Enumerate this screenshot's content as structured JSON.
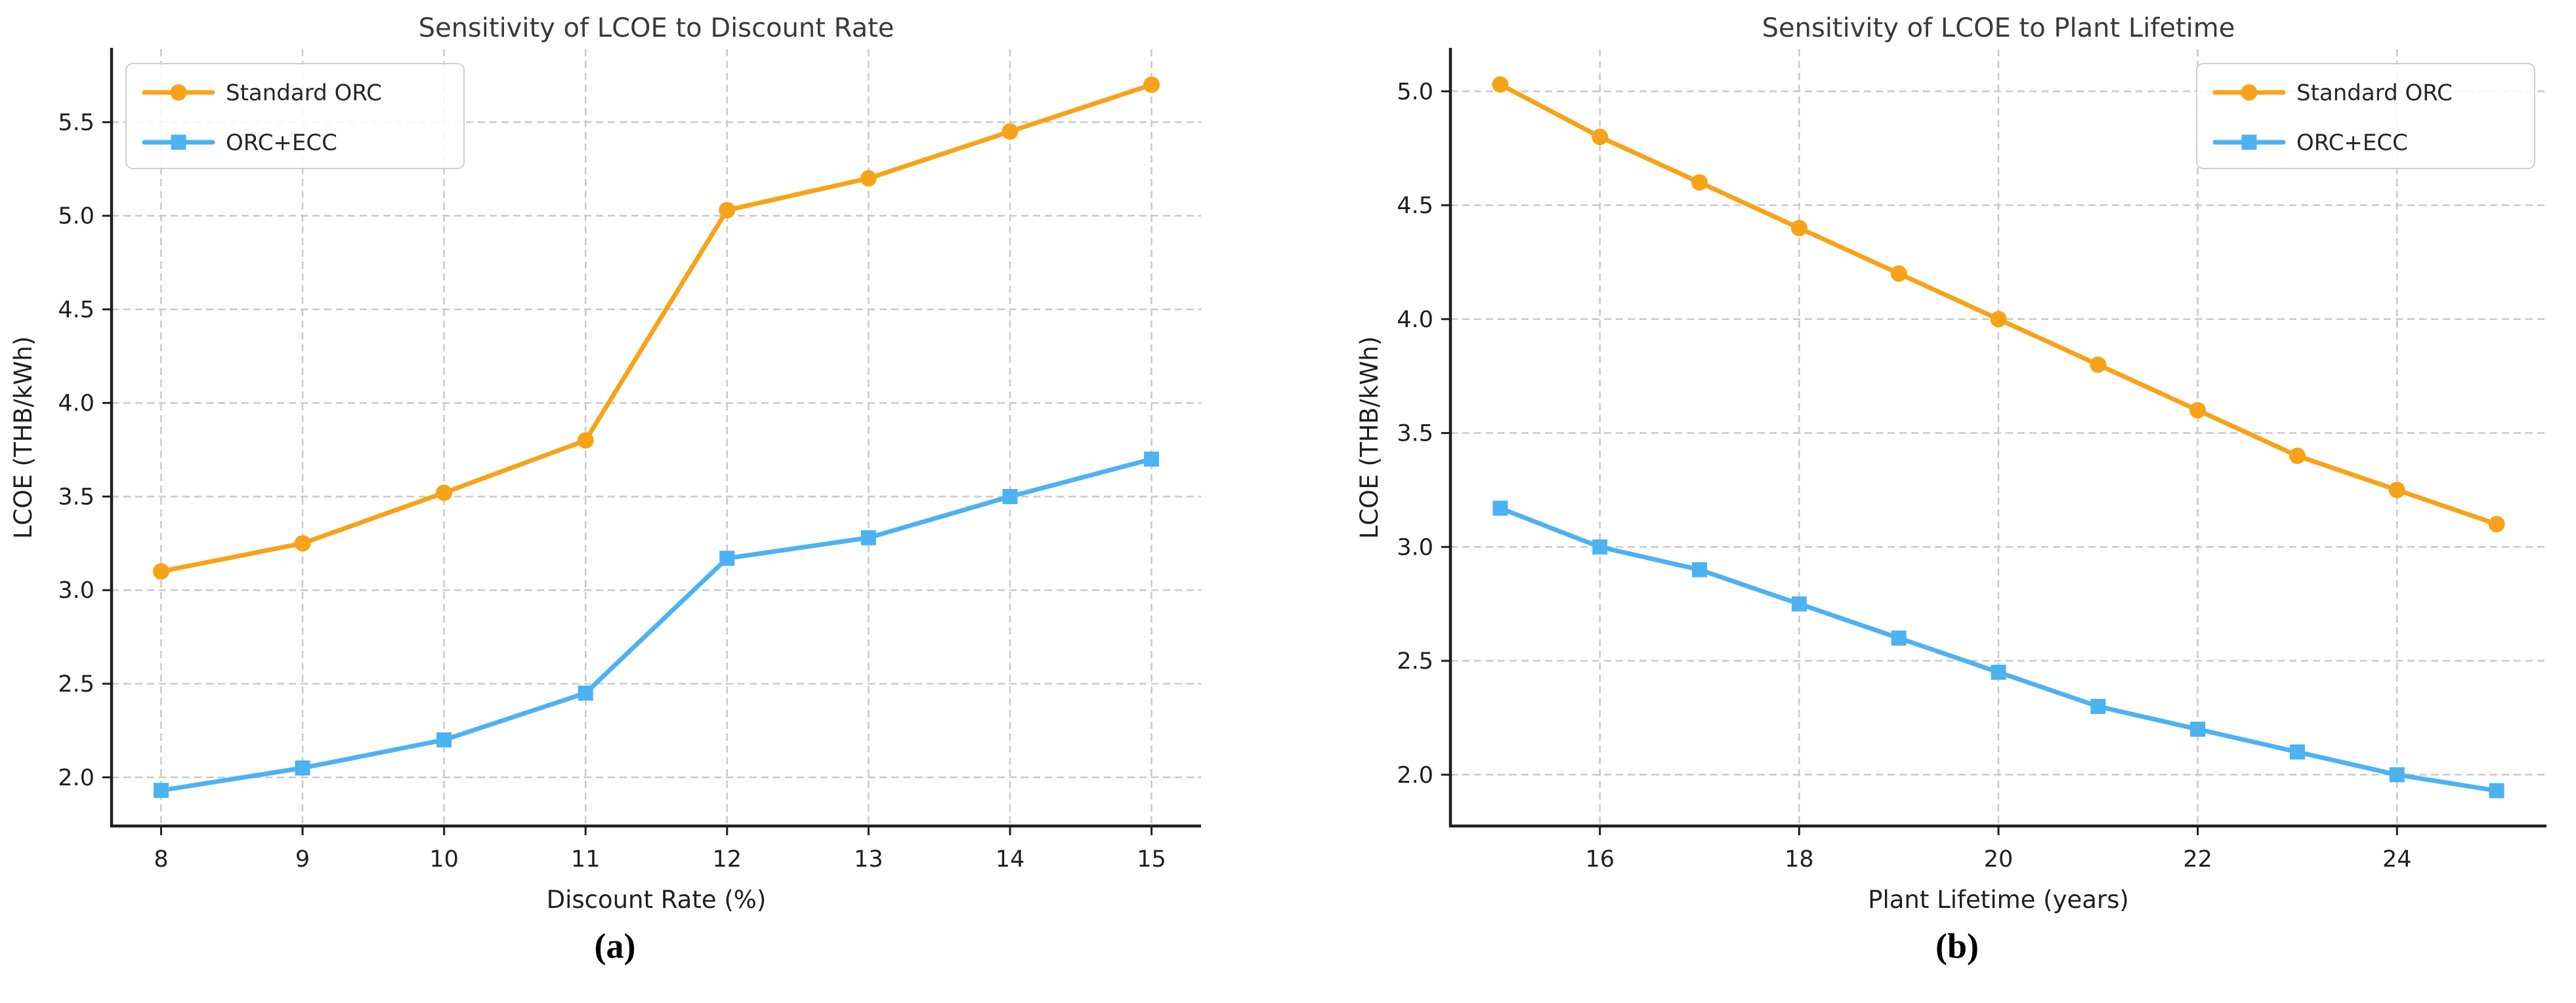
{
  "figure": {
    "background": "#ffffff"
  },
  "colors": {
    "standard_orc": "#F7A319",
    "orc_ecc": "#4DB2F1",
    "grid": "#c9c9c9",
    "axis": "#1f1f1f",
    "title_text": "#3a3a3a"
  },
  "chart_data": [
    {
      "type": "line",
      "caption": "(a)",
      "title": "Sensitivity of LCOE to Discount Rate",
      "xlabel": "Discount Rate (%)",
      "ylabel": "LCOE (THB/kWh)",
      "x": [
        8,
        9,
        10,
        11,
        12,
        13,
        14,
        15
      ],
      "series": [
        {
          "name": "Standard ORC",
          "marker": "circle",
          "color": "#F7A319",
          "values": [
            3.1,
            3.25,
            3.52,
            3.8,
            5.03,
            5.2,
            5.45,
            5.7
          ]
        },
        {
          "name": "ORC+ECC",
          "marker": "square",
          "color": "#4DB2F1",
          "values": [
            1.93,
            2.05,
            2.2,
            2.45,
            3.17,
            3.28,
            3.5,
            3.7
          ]
        }
      ],
      "xlim": [
        7.65,
        15.35
      ],
      "ylim": [
        1.74,
        5.89
      ],
      "xticks": [
        8,
        9,
        10,
        11,
        12,
        13,
        14,
        15
      ],
      "xtick_labels": [
        "8",
        "9",
        "10",
        "11",
        "12",
        "13",
        "14",
        "15"
      ],
      "yticks": [
        2.0,
        2.5,
        3.0,
        3.5,
        4.0,
        4.5,
        5.0,
        5.5
      ],
      "ytick_labels": [
        "2.0",
        "2.5",
        "3.0",
        "3.5",
        "4.0",
        "4.5",
        "5.0",
        "5.5"
      ],
      "legend_position": "upper-left",
      "legend_entries": [
        "Standard ORC",
        "ORC+ECC"
      ],
      "grid": true
    },
    {
      "type": "line",
      "caption": "(b)",
      "title": "Sensitivity of LCOE to Plant Lifetime",
      "xlabel": "Plant Lifetime (years)",
      "ylabel": "LCOE (THB/kWh)",
      "x": [
        15,
        16,
        17,
        18,
        19,
        20,
        21,
        22,
        23,
        24,
        25
      ],
      "series": [
        {
          "name": "Standard ORC",
          "marker": "circle",
          "color": "#F7A319",
          "values": [
            5.03,
            4.8,
            4.6,
            4.4,
            4.2,
            4.0,
            3.8,
            3.6,
            3.4,
            3.25,
            3.1
          ]
        },
        {
          "name": "ORC+ECC",
          "marker": "square",
          "color": "#4DB2F1",
          "values": [
            3.17,
            3.0,
            2.9,
            2.75,
            2.6,
            2.45,
            2.3,
            2.2,
            2.1,
            2.0,
            1.93
          ]
        }
      ],
      "xlim": [
        14.5,
        25.5
      ],
      "ylim": [
        1.775,
        5.185
      ],
      "xticks": [
        16,
        18,
        20,
        22,
        24
      ],
      "xtick_labels": [
        "16",
        "18",
        "20",
        "22",
        "24"
      ],
      "yticks": [
        2.0,
        2.5,
        3.0,
        3.5,
        4.0,
        4.5,
        5.0
      ],
      "ytick_labels": [
        "2.0",
        "2.5",
        "3.0",
        "3.5",
        "4.0",
        "4.5",
        "5.0"
      ],
      "legend_position": "upper-right",
      "legend_entries": [
        "Standard ORC",
        "ORC+ECC"
      ],
      "grid": true
    }
  ]
}
